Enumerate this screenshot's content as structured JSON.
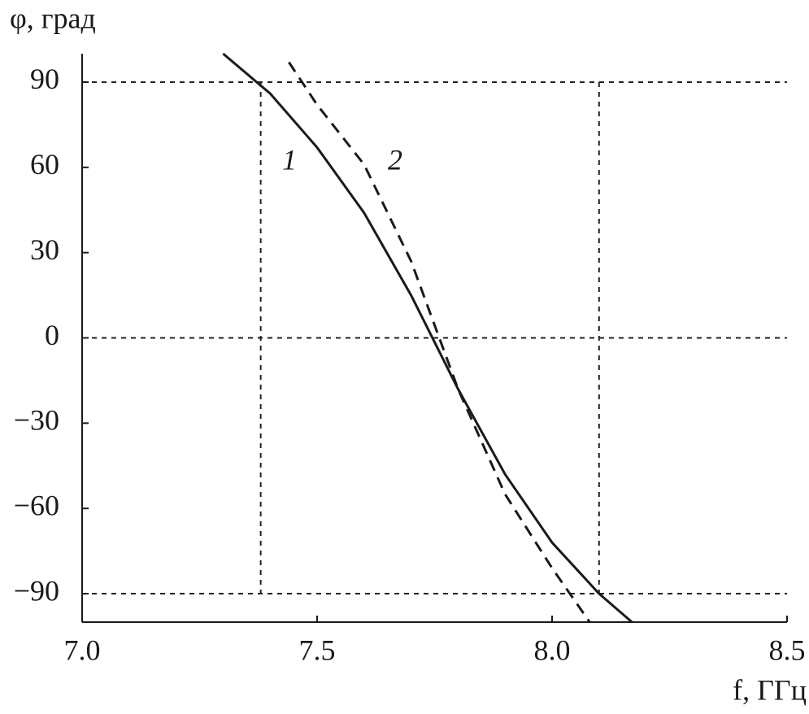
{
  "chart_data": {
    "type": "line",
    "y_label": "φ, град",
    "x_label": "f, ГГц",
    "xlim": [
      7.0,
      8.5
    ],
    "xticks": [
      {
        "value": 7.0,
        "label": "7.0"
      },
      7.5,
      {
        "value": 8.0,
        "label": "8.0"
      },
      8.5
    ],
    "ylim": [
      -100,
      100
    ],
    "yticks": [
      {
        "value": -90,
        "label": "−90"
      },
      {
        "value": -60,
        "label": "−60"
      },
      {
        "value": -30,
        "label": "−30"
      },
      0,
      30,
      60,
      90
    ],
    "hlines": [
      90,
      0,
      -90
    ],
    "vlines": [
      7.38,
      8.1
    ],
    "series": [
      {
        "name": "1",
        "color": "#1a1a1a",
        "dash": false,
        "x": [
          7.3,
          7.4,
          7.5,
          7.6,
          7.7,
          7.8,
          7.9,
          8.0,
          8.1,
          8.17
        ],
        "values": [
          100,
          86,
          67,
          44,
          15,
          -18,
          -48,
          -72,
          -90,
          -100
        ]
      },
      {
        "name": "2",
        "color": "#1a1a1a",
        "dash": true,
        "x": [
          7.44,
          7.5,
          7.6,
          7.7,
          7.8,
          7.9,
          8.0,
          8.08
        ],
        "values": [
          97,
          82,
          61,
          27,
          -18,
          -55,
          -81,
          -100
        ]
      }
    ]
  }
}
